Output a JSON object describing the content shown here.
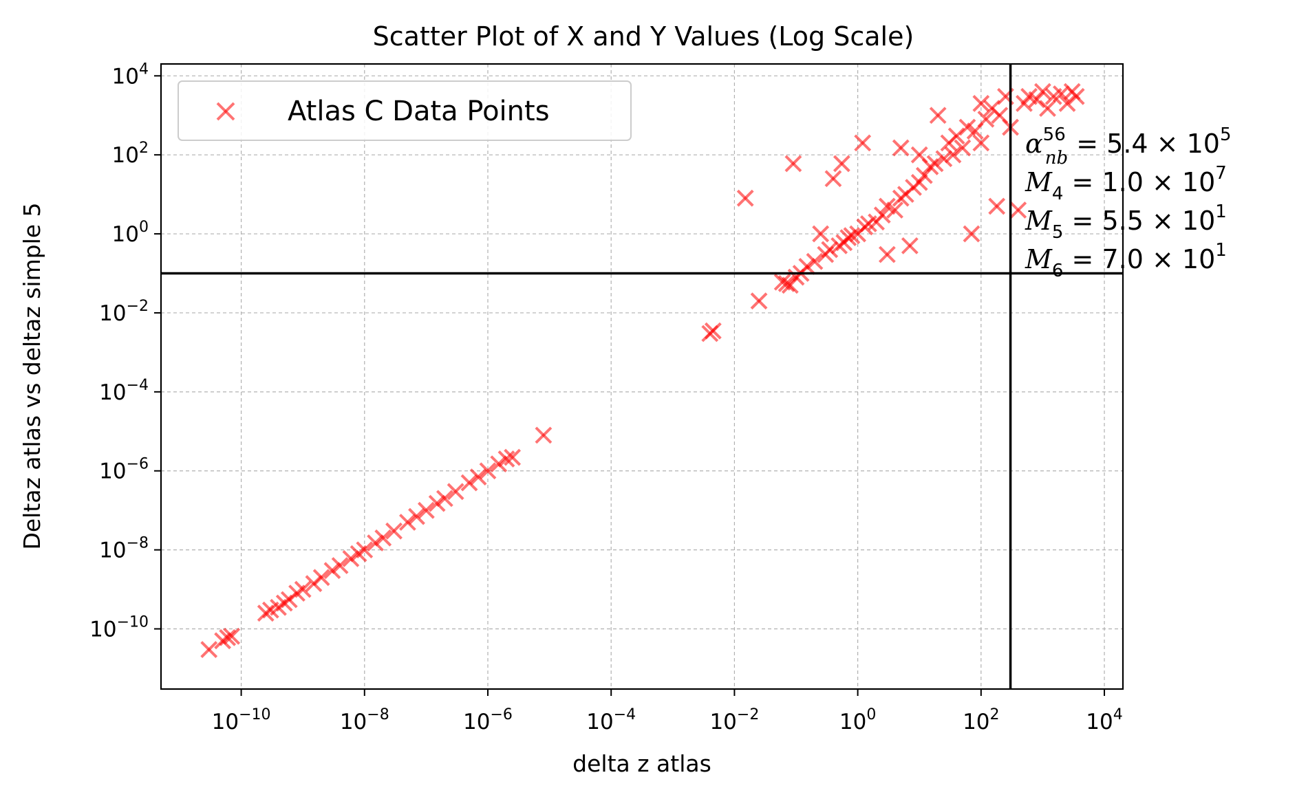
{
  "chart_data": {
    "type": "scatter",
    "title": "Scatter Plot of X and Y Values (Log Scale)",
    "xlabel": "delta z atlas",
    "ylabel": "Deltaz atlas vs deltaz simple 5",
    "x_scale": "log",
    "y_scale": "log",
    "xlim": [
      5e-12,
      20000
    ],
    "ylim": [
      3e-12,
      20000
    ],
    "grid": true,
    "legend_placement": "upper-left",
    "x_ticks": [
      {
        "base": "10",
        "exp": "−10",
        "value": 1e-10
      },
      {
        "base": "10",
        "exp": "−8",
        "value": 1e-08
      },
      {
        "base": "10",
        "exp": "−6",
        "value": 1e-06
      },
      {
        "base": "10",
        "exp": "−4",
        "value": 0.0001
      },
      {
        "base": "10",
        "exp": "−2",
        "value": 0.01
      },
      {
        "base": "10",
        "exp": "0",
        "value": 1
      },
      {
        "base": "10",
        "exp": "2",
        "value": 100
      },
      {
        "base": "10",
        "exp": "4",
        "value": 10000
      }
    ],
    "y_ticks": [
      {
        "base": "10",
        "exp": "−10",
        "value": 1e-10
      },
      {
        "base": "10",
        "exp": "−8",
        "value": 1e-08
      },
      {
        "base": "10",
        "exp": "−6",
        "value": 1e-06
      },
      {
        "base": "10",
        "exp": "−4",
        "value": 0.0001
      },
      {
        "base": "10",
        "exp": "−2",
        "value": 0.01
      },
      {
        "base": "10",
        "exp": "0",
        "value": 1
      },
      {
        "base": "10",
        "exp": "2",
        "value": 100
      },
      {
        "base": "10",
        "exp": "4",
        "value": 10000
      }
    ],
    "reference_lines": {
      "vertical_x": 300,
      "horizontal_y": 0.1
    },
    "series": [
      {
        "name": "Atlas C Data Points",
        "marker": "x",
        "color": "#ff0000",
        "alpha": 0.55,
        "points": [
          [
            3e-11,
            3e-11
          ],
          [
            6e-11,
            6e-11
          ],
          [
            7e-11,
            6.5e-11
          ],
          [
            5e-11,
            5e-11
          ],
          [
            2.5e-10,
            2.5e-10
          ],
          [
            3e-10,
            3e-10
          ],
          [
            4e-10,
            3.5e-10
          ],
          [
            5e-10,
            4.5e-10
          ],
          [
            6e-10,
            5.5e-10
          ],
          [
            8e-10,
            8e-10
          ],
          [
            1e-09,
            1e-09
          ],
          [
            1.5e-09,
            1.4e-09
          ],
          [
            2e-09,
            2e-09
          ],
          [
            3e-09,
            3e-09
          ],
          [
            4e-09,
            4e-09
          ],
          [
            6e-09,
            6e-09
          ],
          [
            8e-09,
            8e-09
          ],
          [
            1e-08,
            1e-08
          ],
          [
            1.5e-08,
            1.5e-08
          ],
          [
            2e-08,
            2e-08
          ],
          [
            3e-08,
            3e-08
          ],
          [
            5e-08,
            5e-08
          ],
          [
            7e-08,
            7e-08
          ],
          [
            1e-07,
            1e-07
          ],
          [
            1.5e-07,
            1.5e-07
          ],
          [
            2e-07,
            2e-07
          ],
          [
            3e-07,
            3e-07
          ],
          [
            5e-07,
            5e-07
          ],
          [
            7e-07,
            7e-07
          ],
          [
            1e-06,
            1e-06
          ],
          [
            1.5e-06,
            1.5e-06
          ],
          [
            2e-06,
            2e-06
          ],
          [
            2.5e-06,
            2.2e-06
          ],
          [
            8e-06,
            8e-06
          ],
          [
            0.004,
            0.003
          ],
          [
            0.0045,
            0.0035
          ],
          [
            0.015,
            8
          ],
          [
            0.025,
            0.02
          ],
          [
            0.06,
            0.06
          ],
          [
            0.07,
            0.055
          ],
          [
            0.08,
            0.05
          ],
          [
            0.09,
            60
          ],
          [
            0.1,
            0.08
          ],
          [
            0.12,
            0.1
          ],
          [
            0.15,
            0.15
          ],
          [
            0.2,
            0.2
          ],
          [
            0.25,
            1
          ],
          [
            0.3,
            0.3
          ],
          [
            0.35,
            0.4
          ],
          [
            0.4,
            25
          ],
          [
            0.5,
            0.5
          ],
          [
            0.55,
            60
          ],
          [
            0.6,
            0.6
          ],
          [
            0.7,
            0.8
          ],
          [
            0.8,
            0.9
          ],
          [
            1,
            1
          ],
          [
            1.2,
            200
          ],
          [
            1.3,
            1.5
          ],
          [
            1.5,
            1.8
          ],
          [
            2,
            2
          ],
          [
            2.5,
            3
          ],
          [
            3,
            0.3
          ],
          [
            3,
            5
          ],
          [
            4,
            4
          ],
          [
            5,
            8
          ],
          [
            5,
            150
          ],
          [
            6,
            10
          ],
          [
            7,
            0.5
          ],
          [
            8,
            15
          ],
          [
            10,
            20
          ],
          [
            10,
            100
          ],
          [
            12,
            30
          ],
          [
            15,
            50
          ],
          [
            18,
            60
          ],
          [
            20,
            1000
          ],
          [
            25,
            80
          ],
          [
            30,
            200
          ],
          [
            35,
            100
          ],
          [
            40,
            300
          ],
          [
            50,
            150
          ],
          [
            60,
            500
          ],
          [
            70,
            1
          ],
          [
            80,
            400
          ],
          [
            100,
            2000
          ],
          [
            100,
            200
          ],
          [
            120,
            800
          ],
          [
            150,
            1500
          ],
          [
            180,
            5
          ],
          [
            200,
            1000
          ],
          [
            250,
            3000
          ],
          [
            300,
            500
          ],
          [
            400,
            4
          ],
          [
            500,
            2000
          ],
          [
            600,
            3000
          ],
          [
            800,
            2500
          ],
          [
            1000,
            4000
          ],
          [
            1200,
            1500
          ],
          [
            1500,
            3000
          ],
          [
            2000,
            3500
          ],
          [
            2500,
            2000
          ],
          [
            3000,
            4000
          ],
          [
            3500,
            3000
          ]
        ]
      }
    ],
    "annotations": [
      {
        "sym": "α",
        "sub": "nb",
        "sup": "56",
        "eq": " = 5.4 × 10",
        "exp": "5"
      },
      {
        "sym": "M",
        "sub": "4",
        "sup": "",
        "eq": " = 1.0 × 10",
        "exp": "7"
      },
      {
        "sym": "M",
        "sub": "5",
        "sup": "",
        "eq": " = 5.5 × 10",
        "exp": "1"
      },
      {
        "sym": "M",
        "sub": "6",
        "sup": "",
        "eq": " = 7.0 × 10",
        "exp": "1"
      }
    ]
  }
}
